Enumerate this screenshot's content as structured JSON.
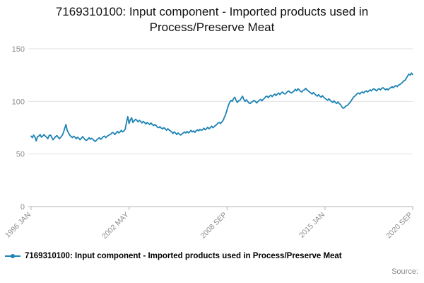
{
  "title": "7169310100: Input component - Imported products used in Process/Preserve Meat",
  "legend": {
    "label": "7169310100: Input component - Imported products used in Process/Preserve Meat",
    "marker": "line-with-dot"
  },
  "source_label": "Source:",
  "colors": {
    "series": "#1d83b4",
    "axis_text": "#8a8a8a",
    "gridline": "#e2e2e2",
    "axis_line": "#b3b3b3",
    "title_text": "#111111"
  },
  "chart_data": {
    "type": "line",
    "title": "7169310100: Input component - Imported products used in Process/Preserve Meat",
    "xlabel": "",
    "ylabel": "",
    "ylim": [
      0,
      150
    ],
    "y_ticks": [
      0,
      50,
      100,
      150
    ],
    "grid": "horizontal",
    "legend_position": "bottom-left",
    "frequency": "monthly",
    "x_start": "1996 JAN",
    "x_end": "2020 SEP",
    "x_tick_labels": [
      "1996 JAN",
      "2002 MAY",
      "2008 SEP",
      "2015 JAN",
      "2020 SEP"
    ],
    "x_tick_indices": [
      0,
      76,
      152,
      228,
      296
    ],
    "series": [
      {
        "name": "7169310100: Input component - Imported products used in Process/Preserve Meat",
        "values": [
          67,
          65.5,
          68,
          66,
          62.5,
          66.5,
          67,
          68.5,
          66,
          67,
          68.5,
          67,
          66,
          64.5,
          67.5,
          68,
          66,
          63.5,
          65,
          66.5,
          67.5,
          66,
          64.5,
          66,
          67.5,
          70,
          74,
          78,
          72.5,
          70,
          68,
          66.5,
          65.5,
          67,
          66,
          64.5,
          66,
          65,
          63.5,
          65,
          66.5,
          65,
          63.5,
          63,
          64,
          65.5,
          64,
          65,
          64,
          62.5,
          62,
          63.5,
          64.5,
          65.5,
          64,
          65,
          66.5,
          67,
          65.5,
          67,
          67.5,
          68.5,
          69,
          70.5,
          70,
          68.5,
          70,
          71.5,
          70,
          71,
          72.5,
          71,
          72,
          73.5,
          80,
          85.5,
          79,
          82.5,
          84.5,
          80,
          81.5,
          83,
          82,
          80.5,
          82,
          81,
          79.5,
          81,
          80,
          78.5,
          80,
          79,
          78,
          79.5,
          78,
          77,
          78,
          77,
          75.5,
          75,
          76,
          74.5,
          74,
          75,
          74,
          72.5,
          74,
          73,
          72,
          71,
          69.5,
          71,
          70,
          68.5,
          70,
          69,
          68,
          69,
          70,
          71,
          70,
          71.5,
          70,
          71,
          72.5,
          71,
          72,
          70.5,
          72,
          73,
          72,
          73.5,
          72.5,
          73,
          74.5,
          73,
          74,
          75.5,
          74,
          75,
          76.5,
          75,
          76,
          77,
          78,
          79.5,
          80,
          79,
          80.5,
          82,
          85,
          88,
          92,
          96,
          99,
          101,
          100,
          102.5,
          104,
          101,
          99,
          100.5,
          101,
          103,
          105,
          102,
          100,
          101.5,
          100,
          98.5,
          98,
          99.5,
          100,
          101,
          100,
          98.5,
          100,
          101,
          102,
          100.5,
          102,
          103,
          104.5,
          105,
          103.5,
          105,
          106,
          104.5,
          106,
          107,
          105.5,
          107,
          108,
          106.5,
          108,
          109,
          107.5,
          107,
          108,
          109.5,
          110,
          108.5,
          108,
          109,
          110,
          111.5,
          110,
          112,
          111,
          109.5,
          109,
          110.5,
          111,
          112.5,
          111,
          110,
          109,
          108,
          107,
          108.5,
          107,
          106,
          105,
          106.5,
          105,
          104,
          105.5,
          104,
          103,
          102,
          101,
          102.5,
          101,
          100,
          99,
          100.5,
          99,
          98,
          99.5,
          98,
          97,
          95,
          93.5,
          94,
          95.5,
          96,
          97,
          98.5,
          100,
          102,
          104,
          105,
          106,
          107.5,
          108,
          107,
          108.5,
          109,
          108,
          109.5,
          110,
          109,
          110,
          111,
          110,
          111.5,
          112,
          111,
          110,
          111.5,
          112,
          111,
          112.5,
          113,
          112,
          111,
          112,
          111,
          112.5,
          113,
          114,
          113,
          114.5,
          115,
          114,
          115.5,
          116,
          117,
          118,
          119.5,
          120,
          122,
          124,
          126,
          125,
          127,
          125.5
        ]
      }
    ]
  }
}
